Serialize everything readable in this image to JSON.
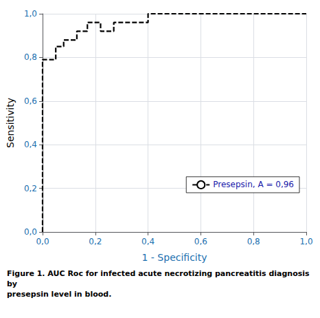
{
  "chart_data": {
    "type": "line",
    "caption": "Figure 1. AUC Roc for infected acute necrotizing pancreatitis diagnosis by\npresepsin level in blood.",
    "xlabel": "1 - Specificity",
    "ylabel": "Sensitivity",
    "x": [
      0.0,
      0.0,
      0.0,
      0.0,
      0.0,
      0.0,
      0.0,
      0.0,
      0.05,
      0.05,
      0.08,
      0.08,
      0.13,
      0.13,
      0.17,
      0.17,
      0.22,
      0.22,
      0.27,
      0.27,
      0.32,
      0.35,
      0.4,
      0.4,
      0.48,
      0.48,
      0.6,
      0.6,
      0.7,
      0.8,
      0.87,
      0.87,
      0.93,
      1.0,
      1.0
    ],
    "series": [
      {
        "name": "Presepsin, A = 0,96",
        "color": "#000000",
        "line_style": "dashed",
        "values": [
          0.0,
          0.04,
          0.12,
          0.22,
          0.35,
          0.46,
          0.58,
          0.79,
          0.79,
          0.85,
          0.85,
          0.88,
          0.88,
          0.92,
          0.92,
          0.96,
          0.96,
          0.92,
          0.92,
          0.96,
          0.96,
          0.96,
          0.96,
          1.0,
          1.0,
          1.0,
          1.0,
          1.0,
          1.0,
          1.0,
          1.0,
          1.0,
          1.0,
          1.0,
          1.0
        ]
      }
    ],
    "xlim": [
      0.0,
      1.0
    ],
    "ylim": [
      0.0,
      1.0
    ],
    "xticks": [
      {
        "value": 0.0,
        "label": "0,0"
      },
      {
        "value": 0.2,
        "label": "0,2"
      },
      {
        "value": 0.4,
        "label": "0,4"
      },
      {
        "value": 0.6,
        "label": "0,6"
      },
      {
        "value": 0.8,
        "label": "0,8"
      },
      {
        "value": 1.0,
        "label": "1,0"
      }
    ],
    "yticks": [
      {
        "value": 0.0,
        "label": "0,0"
      },
      {
        "value": 0.2,
        "label": "0,2"
      },
      {
        "value": 0.4,
        "label": "0,4"
      },
      {
        "value": 0.6,
        "label": "0,6"
      },
      {
        "value": 0.8,
        "label": "0,8"
      },
      {
        "value": 1.0,
        "label": "1,0"
      }
    ],
    "grid": true,
    "legend": "lower right"
  }
}
